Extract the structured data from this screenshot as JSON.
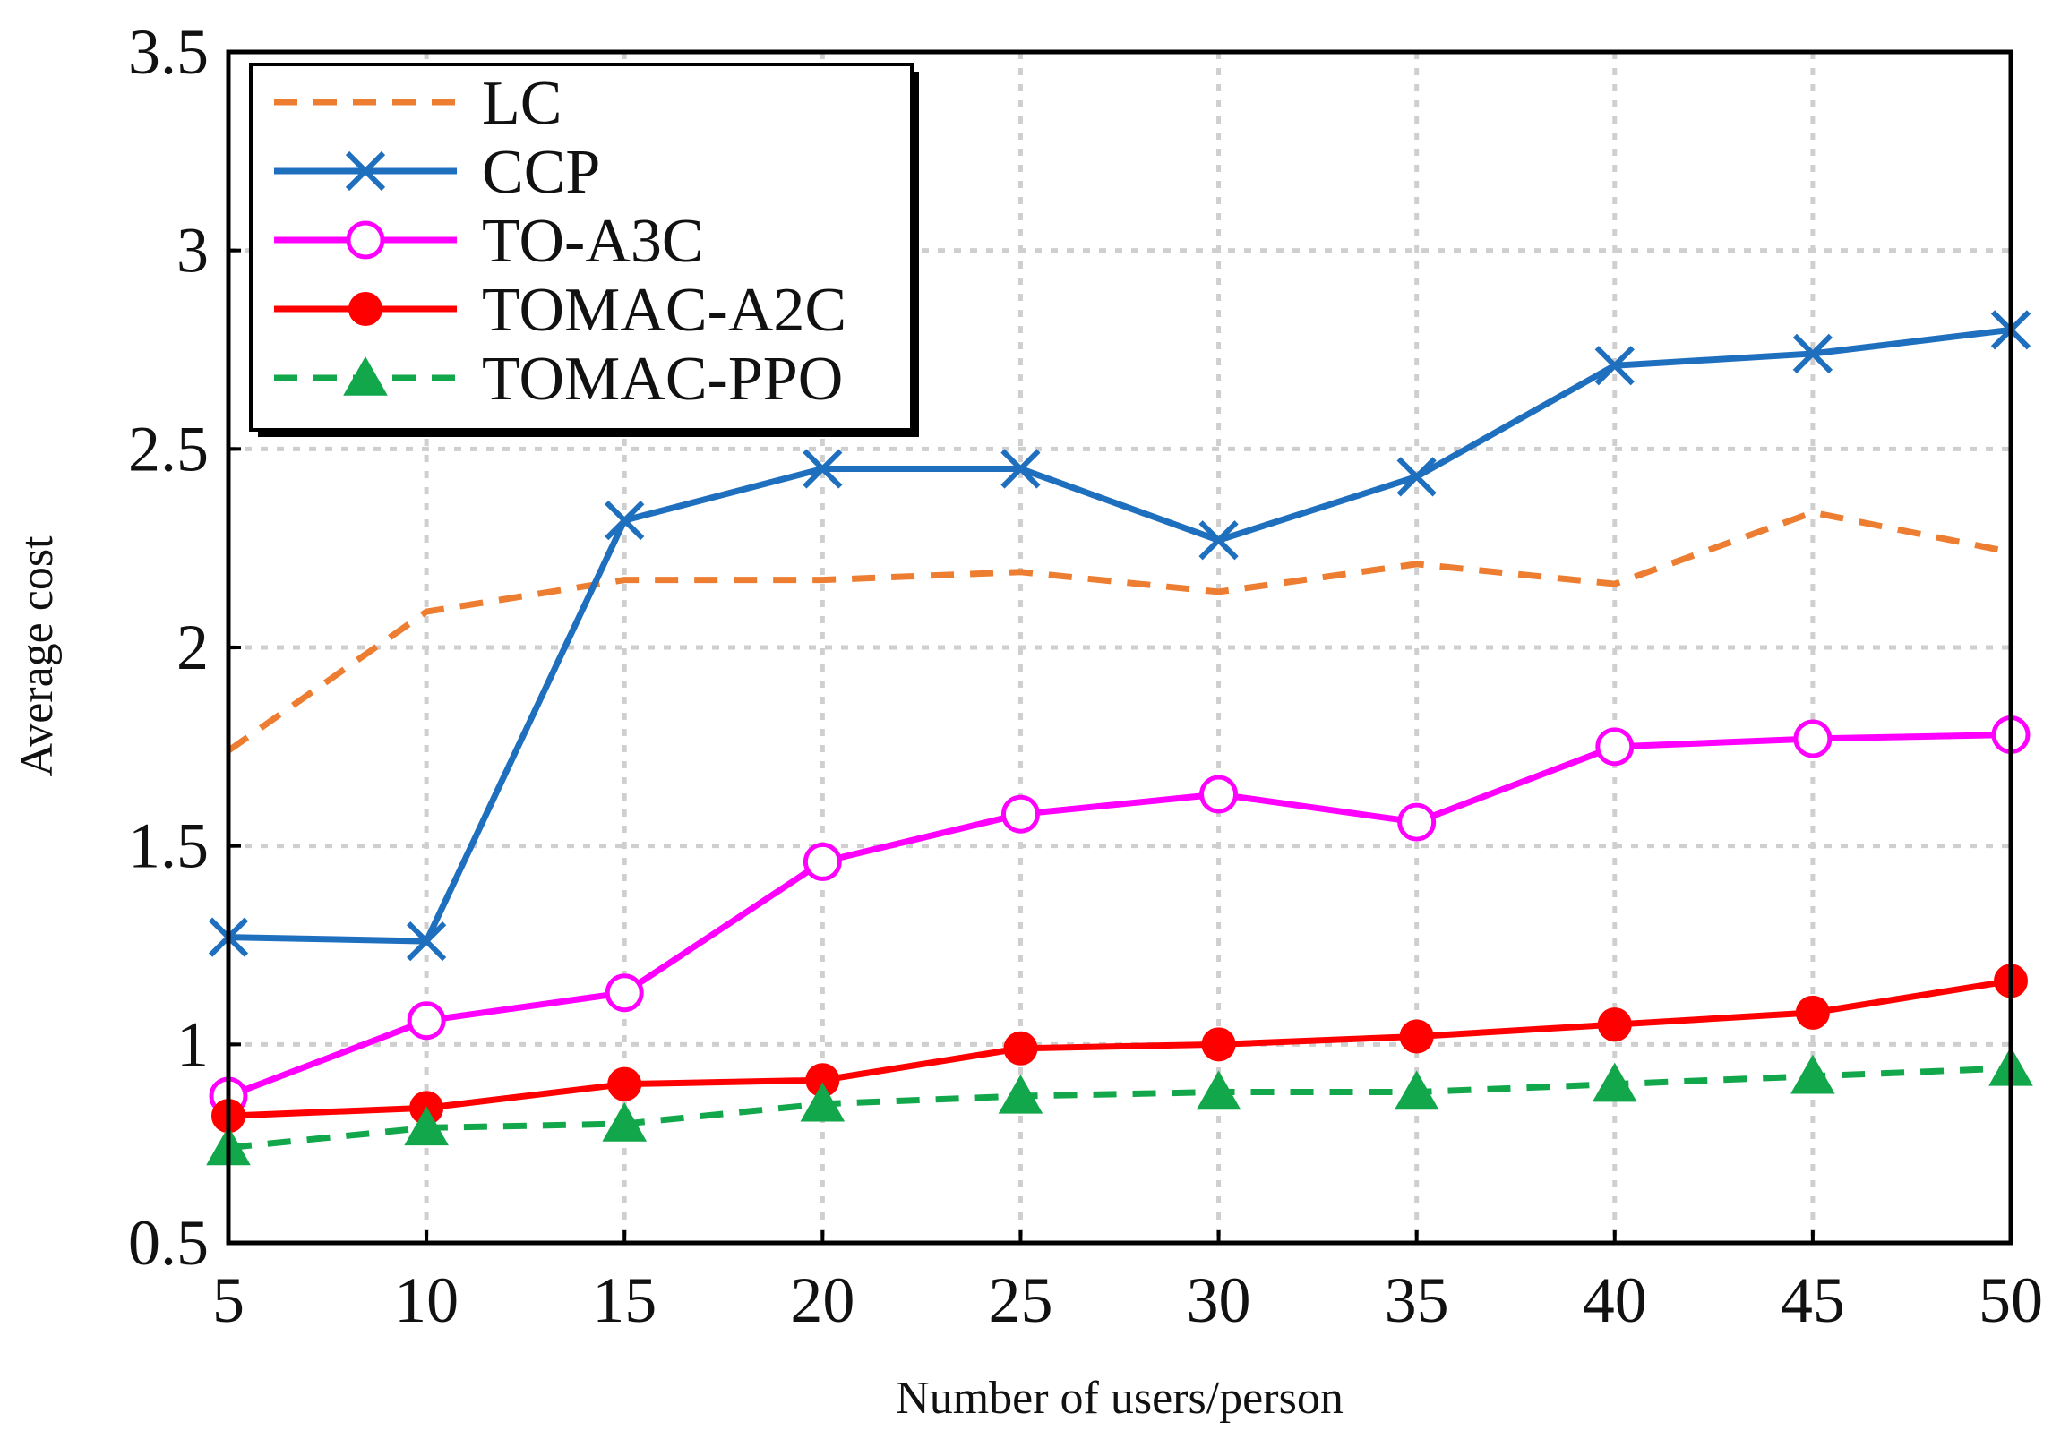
{
  "chart_data": {
    "type": "line",
    "title": "",
    "xlabel": "Number of users/person",
    "ylabel": "Average cost",
    "x": [
      5,
      10,
      15,
      20,
      25,
      30,
      35,
      40,
      45,
      50
    ],
    "xlim": [
      5,
      50
    ],
    "ylim": [
      0.5,
      3.5
    ],
    "xticks": [
      "5",
      "10",
      "15",
      "20",
      "25",
      "30",
      "35",
      "40",
      "45",
      "50"
    ],
    "yticks": [
      "0.5",
      "1",
      "1.5",
      "2",
      "2.5",
      "3",
      "3.5"
    ],
    "ytick_values": [
      0.5,
      1,
      1.5,
      2,
      2.5,
      3,
      3.5
    ],
    "grid": true,
    "legend_position": "top-left",
    "series": [
      {
        "name": "LC",
        "color": "#ed7d31",
        "line": "dashed",
        "marker": "none",
        "values": [
          1.74,
          2.09,
          2.17,
          2.17,
          2.19,
          2.14,
          2.21,
          2.16,
          2.34,
          2.24
        ]
      },
      {
        "name": "CCP",
        "color": "#1f6fbf",
        "line": "solid",
        "marker": "x",
        "values": [
          1.27,
          1.26,
          2.32,
          2.45,
          2.45,
          2.27,
          2.43,
          2.71,
          2.74,
          2.8
        ]
      },
      {
        "name": "TO-A3C",
        "color": "#ff00ff",
        "line": "solid",
        "marker": "open-circle",
        "values": [
          0.87,
          1.06,
          1.13,
          1.46,
          1.58,
          1.63,
          1.56,
          1.75,
          1.77,
          1.78
        ]
      },
      {
        "name": "TOMAC-A2C",
        "color": "#ff0000",
        "line": "solid",
        "marker": "filled-circle",
        "values": [
          0.82,
          0.84,
          0.9,
          0.91,
          0.99,
          1.0,
          1.02,
          1.05,
          1.08,
          1.16
        ]
      },
      {
        "name": "TOMAC-PPO",
        "color": "#11a74a",
        "line": "dashed",
        "marker": "triangle",
        "values": [
          0.74,
          0.79,
          0.8,
          0.85,
          0.87,
          0.88,
          0.88,
          0.9,
          0.92,
          0.94
        ]
      }
    ]
  }
}
